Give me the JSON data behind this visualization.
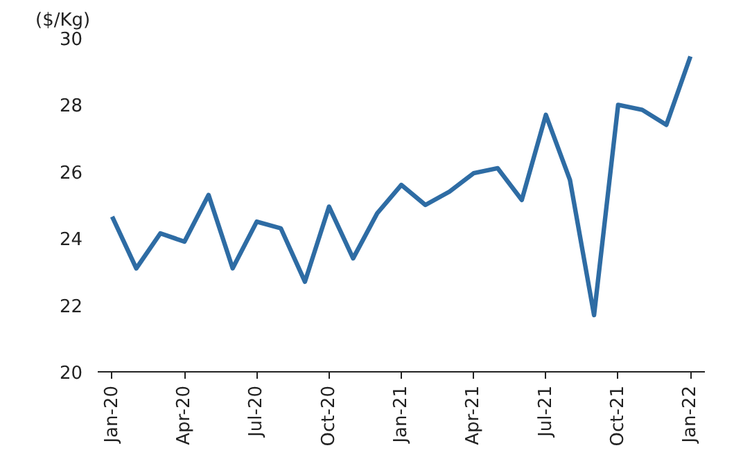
{
  "chart_data": {
    "type": "line",
    "ylabel": "($/Kg)",
    "categories": [
      "Jan-20",
      null,
      null,
      "Apr-20",
      null,
      null,
      "Jul-20",
      null,
      null,
      "Oct-20",
      null,
      null,
      "Jan-21",
      null,
      null,
      "Apr-21",
      null,
      null,
      "Jul-21",
      null,
      null,
      "Oct-21",
      null,
      null,
      "Jan-22"
    ],
    "series": [
      {
        "color": "#2e6ca4",
        "values": [
          24.65,
          23.1,
          24.15,
          23.9,
          25.3,
          23.1,
          24.5,
          24.3,
          22.7,
          24.95,
          23.4,
          24.75,
          25.6,
          25.0,
          25.4,
          25.95,
          26.1,
          25.15,
          27.7,
          25.75,
          21.7,
          28.0,
          27.85,
          27.4,
          29.45
        ]
      }
    ],
    "ylim": [
      20,
      30
    ],
    "yticks": [
      20,
      22,
      24,
      26,
      28,
      30
    ],
    "grid": false,
    "marker": "none",
    "line_style": "solid"
  }
}
